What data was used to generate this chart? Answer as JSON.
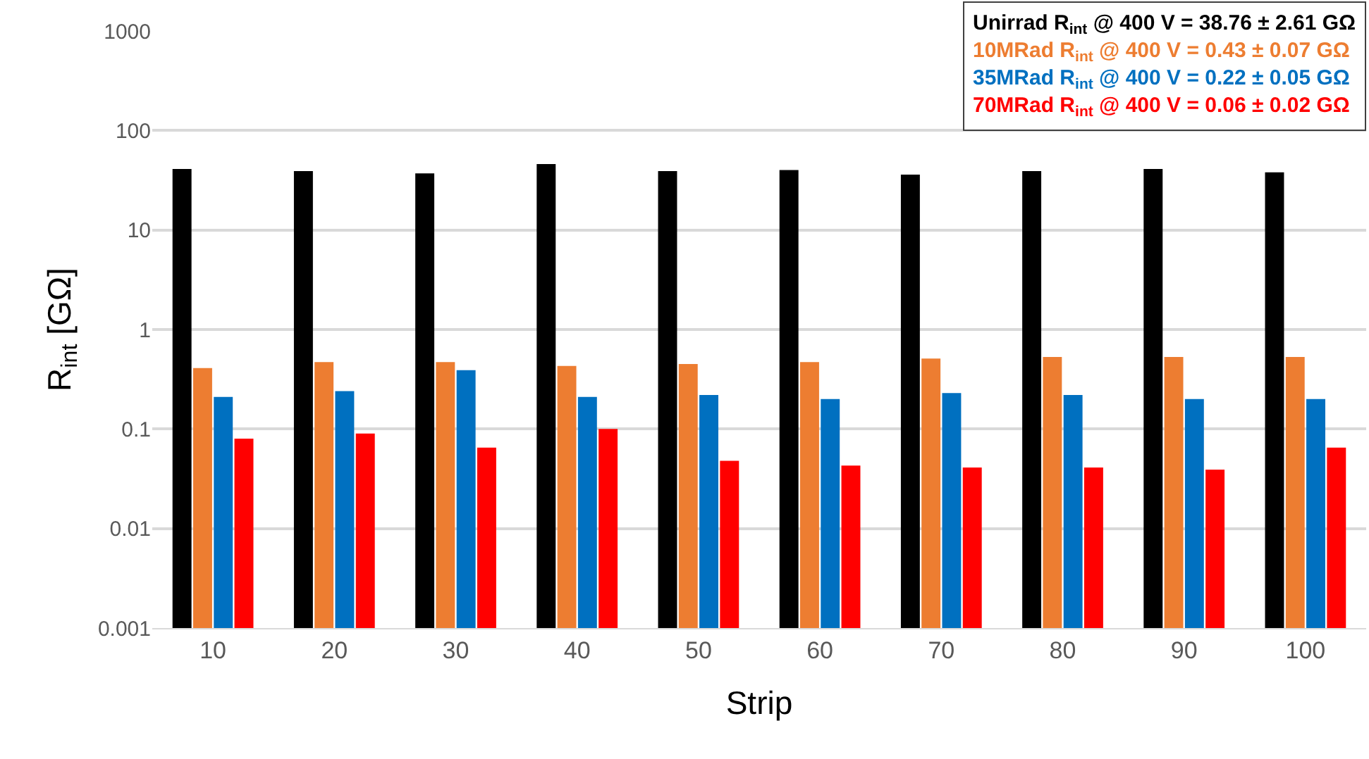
{
  "chart_data": {
    "type": "bar",
    "xlabel": "Strip",
    "ylabel": "R$_{int}$ [GΩ]",
    "categories": [
      "10",
      "20",
      "30",
      "40",
      "50",
      "60",
      "70",
      "80",
      "90",
      "100"
    ],
    "series": [
      {
        "color": "#000000",
        "values": [
          41,
          39,
          37,
          46,
          39,
          40,
          36,
          39,
          41,
          38
        ]
      },
      {
        "color": "#ed7d31",
        "values": [
          0.41,
          0.47,
          0.47,
          0.43,
          0.45,
          0.47,
          0.51,
          0.53,
          0.53,
          0.53
        ]
      },
      {
        "color": "#0070c0",
        "values": [
          0.21,
          0.24,
          0.39,
          0.21,
          0.22,
          0.2,
          0.23,
          0.22,
          0.2,
          0.2
        ]
      },
      {
        "color": "#ff0000",
        "values": [
          0.08,
          0.09,
          0.065,
          0.1,
          0.048,
          0.043,
          0.041,
          0.041,
          0.039,
          0.065
        ]
      }
    ],
    "log": "y",
    "ylim": [
      0.001,
      1000
    ],
    "yticks": [
      0.001,
      0.01,
      0.1,
      1,
      10,
      100,
      1000
    ],
    "grid": "y",
    "annotations": [
      "Unirrad R$_{int}$ @ 400 V = 38.76 ± 2.61 GΩ",
      "10MRad R$_{int}$ @ 400 V = 0.43 ± 0.07 GΩ",
      "35MRad R$_{int}$ @ 400 V = 0.22 ± 0.05 GΩ",
      "70MRad R$_{int}$ @ 400 V = 0.06 ± 0.02 GΩ"
    ]
  }
}
